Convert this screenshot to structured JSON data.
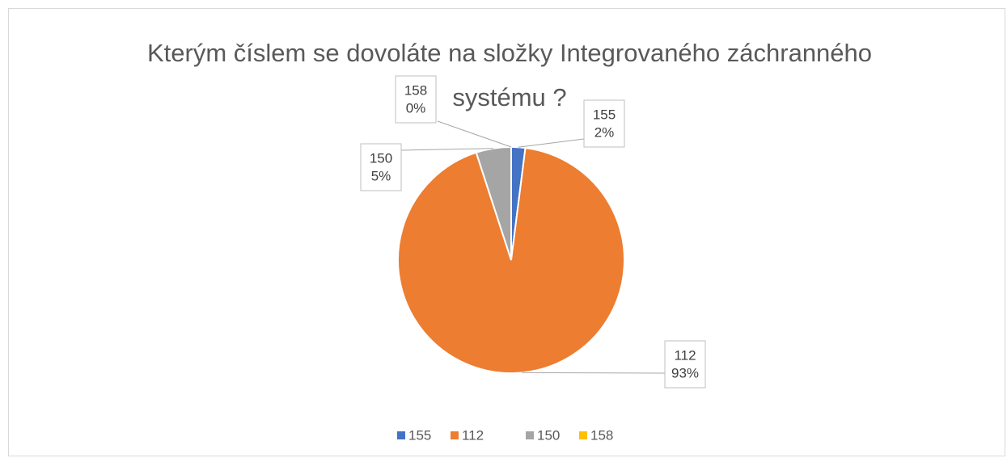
{
  "chart_data": {
    "type": "pie",
    "title": "Kterým číslem se dovoláte na složky Integrovaného záchranného systému ?",
    "categories": [
      "155",
      "112",
      "150",
      "158"
    ],
    "values": [
      2,
      93,
      5,
      0
    ],
    "value_labels": [
      "2%",
      "93%",
      "5%",
      "0%"
    ],
    "colors": [
      "#4472c4",
      "#ed7d31",
      "#a5a5a5",
      "#ffc000"
    ],
    "legend": "bottom"
  }
}
